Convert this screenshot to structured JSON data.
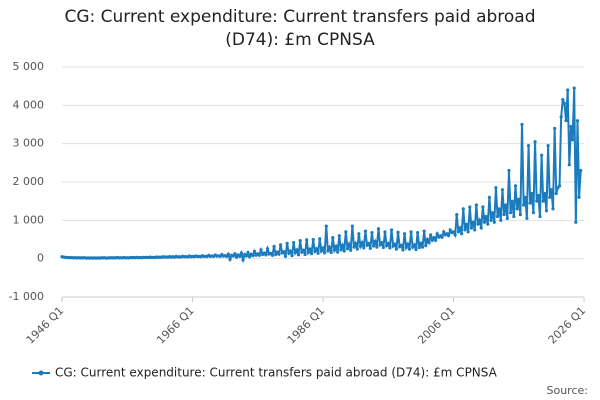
{
  "chart_data": {
    "type": "line",
    "title": "CG: Current expenditure: Current transfers paid abroad (D74): £m CPNSA",
    "source": "Source:",
    "categories": [
      "1946 Q1",
      null,
      null,
      null,
      null,
      null,
      null,
      null,
      null,
      null,
      null,
      null,
      null,
      null,
      null,
      null,
      null,
      null,
      null,
      null,
      null,
      null,
      null,
      null,
      null,
      null,
      null,
      null,
      null,
      null,
      null,
      null,
      null,
      null,
      null,
      null,
      null,
      null,
      null,
      null,
      null,
      null,
      null,
      null,
      null,
      null,
      null,
      null,
      null,
      null,
      null,
      null,
      null,
      null,
      null,
      null,
      null,
      null,
      null,
      null,
      null,
      null,
      null,
      null,
      null,
      null,
      null,
      null,
      null,
      null,
      null,
      null,
      null,
      null,
      null,
      null,
      null,
      null,
      null,
      null,
      "1966 Q1",
      null,
      null,
      null,
      null,
      null,
      null,
      null,
      null,
      null,
      null,
      null,
      null,
      null,
      null,
      null,
      null,
      null,
      null,
      null,
      null,
      null,
      null,
      null,
      null,
      null,
      null,
      null,
      null,
      null,
      null,
      null,
      null,
      null,
      null,
      null,
      null,
      null,
      null,
      null,
      null,
      null,
      null,
      null,
      null,
      null,
      null,
      null,
      null,
      null,
      null,
      null,
      null,
      null,
      null,
      null,
      null,
      null,
      null,
      null,
      null,
      null,
      null,
      null,
      null,
      null,
      null,
      null,
      null,
      null,
      null,
      null,
      null,
      null,
      null,
      null,
      null,
      null,
      null,
      null,
      "1986 Q1",
      null,
      null,
      null,
      null,
      null,
      null,
      null,
      null,
      null,
      null,
      null,
      null,
      null,
      null,
      null,
      null,
      null,
      null,
      null,
      null,
      null,
      null,
      null,
      null,
      null,
      null,
      null,
      null,
      null,
      null,
      null,
      null,
      null,
      null,
      null,
      null,
      null,
      null,
      null,
      null,
      null,
      null,
      null,
      null,
      null,
      null,
      null,
      null,
      null,
      null,
      null,
      null,
      null,
      null,
      null,
      null,
      null,
      null,
      null,
      null,
      null,
      null,
      null,
      null,
      null,
      null,
      null,
      null,
      null,
      null,
      null,
      null,
      null,
      null,
      null,
      null,
      null,
      null,
      null,
      "2006 Q1",
      null,
      null,
      null,
      null,
      null,
      null,
      null,
      null,
      null,
      null,
      null,
      null,
      null,
      null,
      null,
      null,
      null,
      null,
      null,
      null,
      null,
      null,
      null,
      null,
      null,
      null,
      null,
      null,
      null,
      null,
      null,
      null,
      null,
      null,
      null,
      null,
      null,
      null,
      null,
      null,
      null,
      null,
      null,
      null,
      null,
      null,
      null,
      null,
      null,
      null,
      null,
      null,
      null,
      null,
      null,
      null,
      null,
      null,
      null,
      null,
      null,
      null,
      null,
      null,
      null,
      null,
      null,
      null,
      null,
      null,
      null,
      null,
      null,
      null,
      null,
      null,
      null,
      null,
      null,
      "2026 Q1"
    ],
    "series": [
      {
        "name": "CG: Current expenditure: Current transfers paid abroad (D74): £m CPNSA",
        "color": "#1b7bbd",
        "values": [
          50,
          40,
          35,
          30,
          30,
          25,
          30,
          20,
          25,
          20,
          25,
          20,
          20,
          20,
          25,
          15,
          20,
          15,
          20,
          15,
          20,
          15,
          20,
          15,
          20,
          20,
          25,
          15,
          20,
          20,
          25,
          20,
          25,
          20,
          30,
          20,
          25,
          20,
          30,
          20,
          25,
          20,
          30,
          25,
          30,
          25,
          35,
          25,
          30,
          25,
          35,
          30,
          35,
          30,
          40,
          30,
          35,
          30,
          45,
          35,
          40,
          35,
          50,
          40,
          45,
          40,
          55,
          40,
          50,
          40,
          60,
          45,
          50,
          45,
          65,
          50,
          55,
          45,
          70,
          50,
          60,
          50,
          75,
          55,
          60,
          50,
          80,
          55,
          65,
          55,
          85,
          60,
          70,
          60,
          95,
          65,
          75,
          60,
          110,
          70,
          80,
          60,
          120,
          -20,
          90,
          70,
          130,
          40,
          100,
          60,
          150,
          -30,
          110,
          70,
          160,
          50,
          120,
          80,
          190,
          90,
          130,
          90,
          230,
          110,
          150,
          100,
          260,
          120,
          140,
          90,
          320,
          110,
          170,
          120,
          360,
          150,
          180,
          60,
          400,
          140,
          200,
          80,
          420,
          150,
          230,
          100,
          470,
          170,
          220,
          110,
          490,
          160,
          250,
          130,
          500,
          190,
          260,
          140,
          520,
          200,
          280,
          150,
          850,
          200,
          300,
          160,
          550,
          220,
          320,
          170,
          600,
          230,
          350,
          200,
          700,
          260,
          380,
          220,
          850,
          300,
          400,
          250,
          650,
          320,
          420,
          280,
          720,
          350,
          400,
          270,
          680,
          330,
          450,
          300,
          780,
          360,
          420,
          290,
          700,
          340,
          400,
          280,
          750,
          330,
          380,
          250,
          690,
          310,
          350,
          230,
          650,
          290,
          380,
          250,
          700,
          300,
          360,
          240,
          680,
          290,
          400,
          300,
          720,
          340,
          500,
          420,
          620,
          480,
          550,
          480,
          650,
          560,
          600,
          560,
          700,
          620,
          650,
          600,
          750,
          680,
          700,
          620,
          1150,
          700,
          800,
          650,
          1300,
          750,
          900,
          700,
          1350,
          800,
          950,
          750,
          1400,
          900,
          1000,
          800,
          1350,
          950,
          1100,
          900,
          1600,
          1000,
          1200,
          950,
          1850,
          1100,
          1300,
          1000,
          1800,
          1150,
          1400,
          1050,
          2300,
          1200,
          1500,
          1100,
          1900,
          1300,
          1550,
          1150,
          3500,
          1400,
          1600,
          1050,
          2950,
          1450,
          1700,
          1200,
          3050,
          1500,
          1650,
          1100,
          2700,
          1500,
          1700,
          1250,
          2950,
          1600,
          1800,
          1300,
          3400,
          1700,
          1850,
          1900,
          3700,
          4150,
          4050,
          3600,
          4400,
          2450,
          3450,
          3100,
          4450,
          950,
          3600,
          1600,
          2300,
          null,
          null
        ]
      }
    ],
    "ylim": [
      -1000,
      5000
    ],
    "yticks": [
      {
        "value": -1000,
        "label": "-1 000"
      },
      0,
      {
        "value": 1000,
        "label": "1 000"
      },
      {
        "value": 2000,
        "label": "2 000"
      },
      {
        "value": 3000,
        "label": "3 000"
      },
      {
        "value": 4000,
        "label": "4 000"
      },
      {
        "value": 5000,
        "label": "5 000"
      }
    ],
    "grid": true,
    "legend": "bottom"
  }
}
